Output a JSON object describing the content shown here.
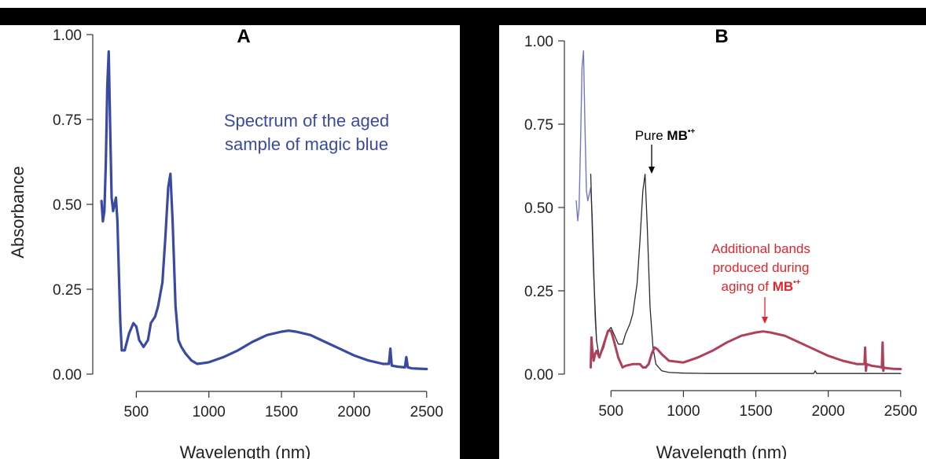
{
  "colors": {
    "panel_a_line": "#3a4aa3",
    "panel_b_blue_line": "#6f78c4",
    "panel_b_black_line": "#2b2b2b",
    "panel_b_red_line": "#e0262c",
    "panel_b_mixed_line": "#b0405a",
    "annotation_blue": "#3a4aa3",
    "annotation_red": "#e0262c",
    "divider": "#000000"
  },
  "chart_data": [
    {
      "type": "line",
      "panel_label": "A",
      "xlabel": "Wavelength (nm)",
      "ylabel": "Absorbance",
      "xlim": [
        200,
        2550
      ],
      "ylim": [
        0,
        1.0
      ],
      "x_ticks": [
        "500",
        "1000",
        "1500",
        "2000",
        "2500"
      ],
      "y_ticks": [
        "0.00",
        "0.25",
        "0.50",
        "0.75",
        "1.00"
      ],
      "grid": false,
      "annotations": [
        "Spectrum of the aged",
        "sample of magic blue"
      ],
      "series": [
        {
          "x": [
            260,
            270,
            280,
            290,
            300,
            310,
            320,
            330,
            340,
            350,
            360,
            370,
            380,
            390,
            400,
            420,
            450,
            480,
            500,
            520,
            550,
            580,
            600,
            630,
            650,
            680,
            700,
            720,
            735,
            750,
            770,
            790,
            810,
            840,
            880,
            920,
            1000,
            1100,
            1200,
            1300,
            1400,
            1500,
            1550,
            1600,
            1700,
            1800,
            1900,
            2000,
            2100,
            2200,
            2240,
            2250,
            2260,
            2300,
            2350,
            2360,
            2370,
            2400,
            2450,
            2500
          ],
          "y": [
            0.51,
            0.45,
            0.48,
            0.62,
            0.85,
            0.95,
            0.72,
            0.52,
            0.48,
            0.5,
            0.52,
            0.45,
            0.3,
            0.15,
            0.07,
            0.07,
            0.12,
            0.15,
            0.14,
            0.1,
            0.08,
            0.1,
            0.15,
            0.17,
            0.2,
            0.27,
            0.4,
            0.55,
            0.59,
            0.45,
            0.2,
            0.1,
            0.08,
            0.06,
            0.04,
            0.03,
            0.035,
            0.05,
            0.07,
            0.095,
            0.115,
            0.125,
            0.128,
            0.125,
            0.115,
            0.095,
            0.075,
            0.055,
            0.04,
            0.03,
            0.03,
            0.075,
            0.025,
            0.022,
            0.02,
            0.05,
            0.02,
            0.017,
            0.016,
            0.015
          ]
        }
      ]
    },
    {
      "type": "line",
      "panel_label": "B",
      "xlabel": "Wavelength (nm)",
      "ylabel": "",
      "xlim": [
        200,
        2550
      ],
      "ylim": [
        0,
        1.0
      ],
      "x_ticks": [
        "500",
        "1000",
        "1500",
        "2000",
        "2500"
      ],
      "y_ticks": [
        "0.00",
        "0.25",
        "0.50",
        "0.75",
        "1.00"
      ],
      "grid": false,
      "annotations": {
        "pure_prefix": "Pure ",
        "pure_bold": "MB",
        "pure_sup": "•+",
        "red_line1": "Additional bands",
        "red_line2": "produced during",
        "red_line3_prefix": "aging of ",
        "red_bold": "MB",
        "red_sup": "•+"
      },
      "series": [
        {
          "x": [
            260,
            270,
            280,
            290,
            300,
            310,
            320,
            330,
            340,
            350,
            360,
            370,
            380,
            390,
            400
          ],
          "y": [
            0.52,
            0.46,
            0.5,
            0.7,
            0.92,
            0.97,
            0.75,
            0.55,
            0.52,
            0.54,
            0.56,
            0.48,
            0.33,
            0.17,
            0.1
          ]
        },
        {
          "x": [
            360,
            370,
            380,
            400,
            420,
            450,
            480,
            500,
            520,
            550,
            580,
            600,
            630,
            650,
            680,
            700,
            720,
            735,
            750,
            770,
            790,
            810,
            850,
            900,
            1000,
            1200,
            1400,
            1600,
            1800,
            1900,
            1910,
            1920,
            2000,
            2200,
            2400,
            2500
          ],
          "y": [
            0.6,
            0.45,
            0.3,
            0.1,
            0.05,
            0.08,
            0.13,
            0.14,
            0.12,
            0.09,
            0.09,
            0.12,
            0.15,
            0.18,
            0.27,
            0.4,
            0.55,
            0.6,
            0.45,
            0.2,
            0.08,
            0.03,
            0.01,
            0.005,
            0.003,
            0.002,
            0.002,
            0.002,
            0.002,
            0.002,
            0.01,
            0.002,
            0.002,
            0.002,
            0.002,
            0.002
          ]
        },
        {
          "x": [
            360,
            365,
            370,
            380,
            390,
            400,
            420,
            450,
            480,
            500,
            520,
            550,
            580,
            600,
            650,
            700,
            720,
            740,
            760,
            780,
            800,
            820,
            850,
            900,
            1000,
            1100,
            1200,
            1300,
            1400,
            1500,
            1550,
            1600,
            1700,
            1800,
            1900,
            2000,
            2100,
            2200,
            2250,
            2255,
            2260,
            2265,
            2300,
            2350,
            2370,
            2375,
            2380,
            2385,
            2400,
            2450,
            2500
          ],
          "y": [
            0.02,
            0.11,
            0.08,
            0.04,
            0.06,
            0.07,
            0.05,
            0.09,
            0.13,
            0.13,
            0.1,
            0.05,
            0.02,
            0.025,
            0.03,
            0.03,
            0.02,
            0.02,
            0.03,
            0.06,
            0.08,
            0.075,
            0.06,
            0.04,
            0.035,
            0.05,
            0.07,
            0.095,
            0.115,
            0.125,
            0.128,
            0.125,
            0.115,
            0.095,
            0.075,
            0.055,
            0.04,
            0.03,
            0.03,
            0.08,
            0.01,
            0.03,
            0.025,
            0.022,
            0.02,
            0.095,
            0.01,
            0.02,
            0.018,
            0.016,
            0.015
          ]
        }
      ]
    }
  ]
}
